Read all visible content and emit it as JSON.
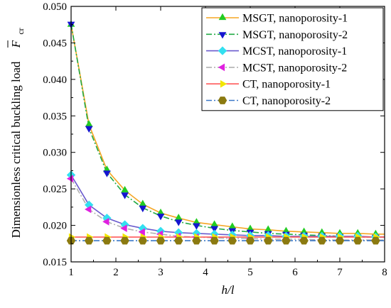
{
  "chart_data": {
    "type": "line",
    "xlabel": "h/l",
    "ylabel": "Dimensionless critical buckling load",
    "ylabel_symbol": "F",
    "ylabel_subscript": "cr",
    "xlim": [
      1,
      8
    ],
    "ylim": [
      0.015,
      0.05
    ],
    "xticks": [
      "1",
      "2",
      "3",
      "4",
      "5",
      "6",
      "7",
      "8"
    ],
    "yticks": [
      "0.015",
      "0.020",
      "0.025",
      "0.030",
      "0.035",
      "0.040",
      "0.045",
      "0.050"
    ],
    "legend_position": "top-right",
    "series": [
      {
        "name": "MSGT, nanoporosity-1",
        "color": "#F5A623",
        "marker_color": "#22CC22",
        "marker": "triangle-up",
        "line": "solid",
        "x": [
          1,
          1.4,
          1.8,
          2.2,
          2.6,
          3.0,
          3.4,
          3.8,
          4.2,
          4.6,
          5.0,
          5.4,
          5.8,
          6.2,
          6.6,
          7.0,
          7.4,
          7.8
        ],
        "y": [
          0.0475,
          0.0338,
          0.0276,
          0.0248,
          0.0229,
          0.0217,
          0.021,
          0.0204,
          0.0201,
          0.0198,
          0.0195,
          0.0194,
          0.0192,
          0.0191,
          0.019,
          0.0189,
          0.0189,
          0.0188
        ]
      },
      {
        "name": "MSGT, nanoporosity-2",
        "color": "#22AA44",
        "marker_color": "#1515D0",
        "marker": "triangle-down",
        "line": "dashdot",
        "x": [
          1,
          1.4,
          1.8,
          2.2,
          2.6,
          3.0,
          3.4,
          3.8,
          4.2,
          4.6,
          5.0,
          5.4,
          5.8,
          6.2,
          6.6,
          7.0,
          7.4,
          7.8
        ],
        "y": [
          0.0476,
          0.0333,
          0.0272,
          0.0242,
          0.0224,
          0.0213,
          0.0205,
          0.02,
          0.0196,
          0.0193,
          0.0191,
          0.0189,
          0.0188,
          0.0187,
          0.0186,
          0.0185,
          0.0184,
          0.0184
        ]
      },
      {
        "name": "MCST, nanoporosity-1",
        "color": "#6A5ACD",
        "marker_color": "#33E0F0",
        "marker": "diamond",
        "line": "solid",
        "x": [
          1,
          1.4,
          1.8,
          2.2,
          2.6,
          3.0,
          3.4,
          3.8,
          4.2,
          4.6,
          5.0,
          5.4,
          5.8,
          6.2,
          6.6,
          7.0,
          7.4,
          7.8
        ],
        "y": [
          0.0269,
          0.0228,
          0.021,
          0.0201,
          0.0196,
          0.0192,
          0.019,
          0.0189,
          0.0188,
          0.0187,
          0.0186,
          0.0186,
          0.0185,
          0.0185,
          0.0185,
          0.0185,
          0.0185,
          0.0184
        ]
      },
      {
        "name": "MCST, nanoporosity-2",
        "color": "#B0B0B0",
        "marker_color": "#E020E0",
        "marker": "triangle-left",
        "line": "dashdot",
        "x": [
          1,
          1.4,
          1.8,
          2.2,
          2.6,
          3.0,
          3.4,
          3.8,
          4.2,
          4.6,
          5.0,
          5.4,
          5.8,
          6.2,
          6.6,
          7.0,
          7.4,
          7.8
        ],
        "y": [
          0.0264,
          0.0222,
          0.0205,
          0.0196,
          0.0191,
          0.0188,
          0.0185,
          0.0184,
          0.0183,
          0.0182,
          0.0182,
          0.0181,
          0.0181,
          0.0181,
          0.018,
          0.018,
          0.018,
          0.018
        ]
      },
      {
        "name": "CT, nanoporosity-1",
        "color": "#FF5A5A",
        "marker_color": "#F2E600",
        "marker": "triangle-right",
        "line": "solid",
        "x": [
          1,
          1.4,
          1.8,
          2.2,
          2.6,
          3.0,
          3.4,
          3.8,
          4.2,
          4.6,
          5.0,
          5.4,
          5.8,
          6.2,
          6.6,
          7.0,
          7.4,
          7.8
        ],
        "y": [
          0.0184,
          0.0184,
          0.0184,
          0.0184,
          0.0184,
          0.0184,
          0.0184,
          0.0184,
          0.0184,
          0.0184,
          0.0184,
          0.0184,
          0.0184,
          0.0184,
          0.0184,
          0.0184,
          0.0184,
          0.0184
        ]
      },
      {
        "name": "CT, nanoporosity-2",
        "color": "#3A78C8",
        "marker_color": "#8B7A10",
        "marker": "hexagon",
        "line": "dashdot",
        "x": [
          1,
          1.4,
          1.8,
          2.2,
          2.6,
          3.0,
          3.4,
          3.8,
          4.2,
          4.6,
          5.0,
          5.4,
          5.8,
          6.2,
          6.6,
          7.0,
          7.4,
          7.8
        ],
        "y": [
          0.0179,
          0.0179,
          0.0179,
          0.0179,
          0.0179,
          0.0179,
          0.0179,
          0.0179,
          0.0179,
          0.0179,
          0.0179,
          0.0179,
          0.0179,
          0.0179,
          0.0179,
          0.0179,
          0.0179,
          0.0179
        ]
      }
    ]
  }
}
